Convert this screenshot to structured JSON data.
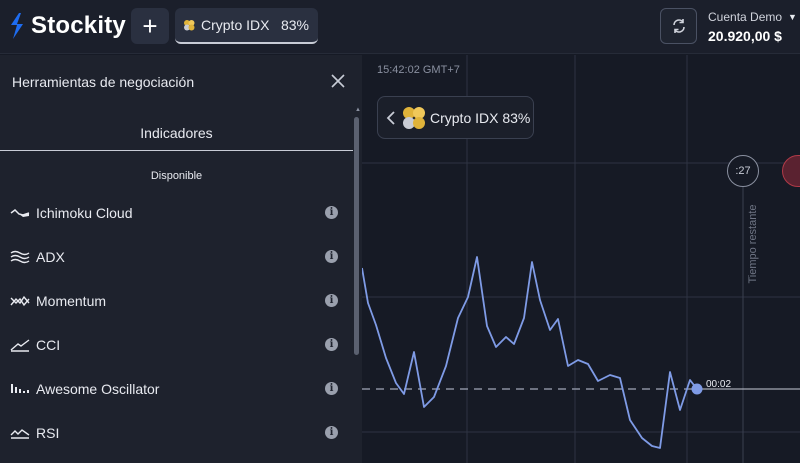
{
  "header": {
    "brand": "Stockity",
    "add_label": "+",
    "asset_tab": {
      "name": "Crypto IDX",
      "payout": "83%"
    },
    "account": {
      "label": "Cuenta Demo",
      "balance": "20.920,00 $"
    }
  },
  "panel": {
    "title": "Herramientas de negociación",
    "tab_label": "Indicadores",
    "section_label": "Disponible",
    "indicators": [
      {
        "label": "Ichimoku Cloud",
        "icon": "ichimoku-icon"
      },
      {
        "label": "ADX",
        "icon": "adx-icon"
      },
      {
        "label": "Momentum",
        "icon": "momentum-icon"
      },
      {
        "label": "CCI",
        "icon": "cci-icon"
      },
      {
        "label": "Awesome Oscillator",
        "icon": "awesome-oscillator-icon"
      },
      {
        "label": "RSI",
        "icon": "rsi-icon"
      }
    ],
    "info_glyph": "i"
  },
  "chart": {
    "time": "15:42:02 GMT+7",
    "asset_chip": "Crypto IDX 83%",
    "timer": ":27",
    "remaining_label": "Tiempo restante",
    "price_time": "00:02"
  },
  "colors": {
    "line": "#7f9be6",
    "accent_blue": "#1e6cf0",
    "background": "#161a25",
    "panel": "#1e222d"
  }
}
